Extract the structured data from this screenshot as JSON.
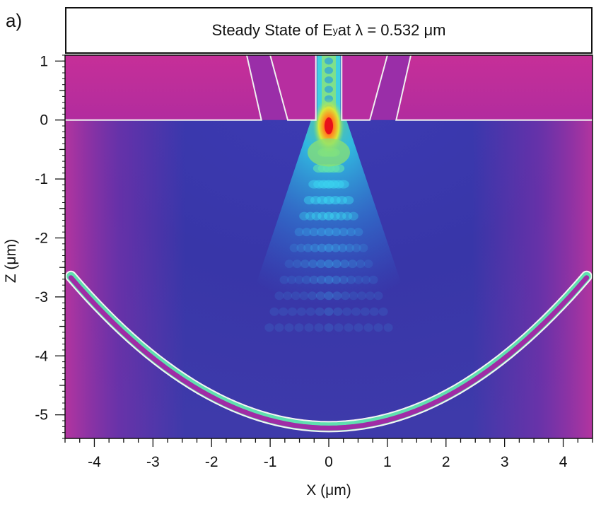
{
  "panel_label": "a)",
  "title": {
    "prefix": "Steady State of E",
    "subscript": "y",
    "suffix": " at λ = 0.532 μm"
  },
  "chart_data": {
    "type": "heatmap",
    "title": "Steady State of Ey at λ = 0.532 μm",
    "xlabel": "X (μm)",
    "ylabel": "Z (μm)",
    "xlim": [
      -4.5,
      4.5
    ],
    "ylim": [
      -5.4,
      1.1
    ],
    "x_ticks": [
      -4,
      -3,
      -2,
      -1,
      0,
      1,
      2,
      3,
      4
    ],
    "y_ticks": [
      1,
      0,
      -1,
      -2,
      -3,
      -4,
      -5
    ],
    "x_tick_labels": [
      "-4",
      "-3",
      "-2",
      "-1",
      "0",
      "1",
      "2",
      "3",
      "4"
    ],
    "y_tick_labels": [
      "1",
      "0",
      "-1",
      "-2",
      "-3",
      "-4",
      "-5"
    ],
    "colormap": [
      "#3a34a8",
      "#2c6fd6",
      "#2fd0e8",
      "#6be08a",
      "#d8e83a",
      "#ff8a1f",
      "#e8101a",
      "#d0309c"
    ],
    "structures": {
      "slab_top": 1.1,
      "slab_bottom": 0.0,
      "inner_slit": [
        [
          -0.22,
          1.1
        ],
        [
          -0.22,
          0.0
        ],
        [
          0.22,
          0.0
        ],
        [
          0.22,
          1.1
        ]
      ],
      "left_groove_outer": [
        [
          -1.4,
          1.1
        ],
        [
          -1.15,
          0.0
        ]
      ],
      "left_groove_inner": [
        [
          -1.0,
          1.1
        ],
        [
          -0.7,
          0.0
        ]
      ],
      "right_groove_inner": [
        [
          1.0,
          1.1
        ],
        [
          0.7,
          0.0
        ]
      ],
      "right_groove_outer": [
        [
          1.4,
          1.1
        ],
        [
          1.15,
          0.0
        ]
      ],
      "mirror_arc": {
        "center_x": 0.0,
        "bottom_z": -5.2,
        "end_x": [
          -4.4,
          4.4
        ],
        "end_z": -2.65
      }
    },
    "hotspot": {
      "x": 0.0,
      "z": -0.1
    }
  }
}
